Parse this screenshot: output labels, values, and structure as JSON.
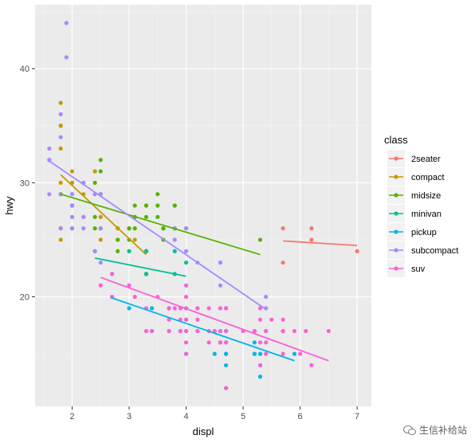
{
  "chart_data": {
    "type": "scatter",
    "xlabel": "displ",
    "ylabel": "hwy",
    "xlim": [
      1.35,
      7.25
    ],
    "ylim": [
      10.4,
      45.6
    ],
    "x_ticks": [
      2,
      3,
      4,
      5,
      6,
      7
    ],
    "y_ticks": [
      20,
      30,
      40
    ],
    "grid": true,
    "legend_title": "class",
    "legend_position": "right",
    "series": [
      {
        "name": "2seater",
        "color": "#F8766D",
        "points": [
          [
            5.7,
            26
          ],
          [
            5.7,
            23
          ],
          [
            6.2,
            26
          ],
          [
            6.2,
            25
          ],
          [
            7.0,
            24
          ]
        ],
        "fit": [
          [
            5.7,
            24.9
          ],
          [
            7.0,
            24.5
          ]
        ]
      },
      {
        "name": "compact",
        "color": "#C49A00",
        "points": [
          [
            1.8,
            29
          ],
          [
            1.8,
            29
          ],
          [
            2.0,
            31
          ],
          [
            2.0,
            30
          ],
          [
            2.8,
            26
          ],
          [
            2.8,
            26
          ],
          [
            3.1,
            27
          ],
          [
            1.8,
            26
          ],
          [
            1.8,
            25
          ],
          [
            2.0,
            28
          ],
          [
            2.0,
            27
          ],
          [
            2.8,
            25
          ],
          [
            2.8,
            25
          ],
          [
            3.1,
            25
          ],
          [
            1.8,
            30
          ],
          [
            1.8,
            33
          ],
          [
            1.8,
            35
          ],
          [
            1.8,
            37
          ],
          [
            1.8,
            35
          ],
          [
            2.2,
            27
          ],
          [
            2.2,
            29
          ],
          [
            2.4,
            31
          ],
          [
            2.4,
            31
          ],
          [
            3.0,
            26
          ],
          [
            3.3,
            24
          ],
          [
            2.5,
            26
          ],
          [
            2.5,
            25
          ],
          [
            2.5,
            29
          ],
          [
            2.5,
            27
          ],
          [
            2.8,
            25
          ]
        ],
        "fit": [
          [
            1.8,
            30.7
          ],
          [
            3.3,
            23.7
          ]
        ]
      },
      {
        "name": "midsize",
        "color": "#53B400",
        "points": [
          [
            2.4,
            27
          ],
          [
            2.4,
            30
          ],
          [
            3.1,
            26
          ],
          [
            3.5,
            29
          ],
          [
            3.6,
            26
          ],
          [
            2.5,
            32
          ],
          [
            2.5,
            31
          ],
          [
            3.0,
            26
          ],
          [
            3.3,
            28
          ],
          [
            3.8,
            26
          ],
          [
            3.8,
            28
          ],
          [
            3.8,
            26
          ],
          [
            3.3,
            28
          ],
          [
            4.0,
            26
          ],
          [
            3.5,
            27
          ],
          [
            3.5,
            28
          ],
          [
            3.0,
            26
          ],
          [
            2.4,
            26
          ],
          [
            2.4,
            29
          ],
          [
            3.3,
            27
          ],
          [
            3.8,
            28
          ],
          [
            3.8,
            26
          ],
          [
            1.8,
            29
          ],
          [
            2.0,
            28
          ],
          [
            2.0,
            26
          ],
          [
            2.8,
            25
          ],
          [
            3.1,
            28
          ],
          [
            3.1,
            27
          ],
          [
            3.6,
            26
          ],
          [
            3.6,
            25
          ],
          [
            2.8,
            24
          ],
          [
            5.3,
            25
          ],
          [
            2.0,
            28
          ],
          [
            2.5,
            29
          ],
          [
            3.0,
            25
          ]
        ],
        "fit": [
          [
            1.8,
            29.0
          ],
          [
            5.3,
            23.7
          ]
        ]
      },
      {
        "name": "minivan",
        "color": "#00C094",
        "points": [
          [
            2.4,
            24
          ],
          [
            3.0,
            24
          ],
          [
            3.3,
            22
          ],
          [
            3.3,
            22
          ],
          [
            3.3,
            24
          ],
          [
            3.3,
            24
          ],
          [
            3.3,
            24
          ],
          [
            3.3,
            22
          ],
          [
            3.8,
            22
          ],
          [
            3.8,
            24
          ],
          [
            4.0,
            23
          ]
        ],
        "fit": [
          [
            2.4,
            23.4
          ],
          [
            4.0,
            21.8
          ]
        ]
      },
      {
        "name": "pickup",
        "color": "#00B6EB",
        "points": [
          [
            2.7,
            20
          ],
          [
            2.7,
            20
          ],
          [
            2.7,
            22
          ],
          [
            3.4,
            19
          ],
          [
            3.4,
            17
          ],
          [
            3.9,
            17
          ],
          [
            4.7,
            17
          ],
          [
            4.7,
            16
          ],
          [
            4.7,
            15
          ],
          [
            5.2,
            17
          ],
          [
            5.2,
            15
          ],
          [
            5.7,
            17
          ],
          [
            5.9,
            15
          ],
          [
            4.7,
            12
          ],
          [
            5.2,
            16
          ],
          [
            5.3,
            15
          ],
          [
            5.3,
            14
          ],
          [
            5.2,
            15
          ],
          [
            4.6,
            16
          ],
          [
            4.7,
            17
          ],
          [
            4.7,
            15
          ],
          [
            5.4,
            17
          ],
          [
            4.0,
            17
          ],
          [
            4.0,
            19
          ],
          [
            3.7,
            19
          ],
          [
            4.7,
            17
          ],
          [
            5.3,
            13
          ],
          [
            4.5,
            15
          ],
          [
            4.0,
            15
          ],
          [
            4.7,
            14
          ],
          [
            3.0,
            19
          ],
          [
            4.0,
            18
          ],
          [
            4.6,
            17
          ]
        ],
        "fit": [
          [
            2.7,
            19.9
          ],
          [
            5.9,
            14.4
          ]
        ]
      },
      {
        "name": "subcompact",
        "color": "#A58AFF",
        "points": [
          [
            1.6,
            33
          ],
          [
            1.6,
            32
          ],
          [
            1.6,
            32
          ],
          [
            1.6,
            29
          ],
          [
            1.8,
            36
          ],
          [
            1.8,
            36
          ],
          [
            1.8,
            34
          ],
          [
            1.9,
            44
          ],
          [
            1.9,
            41
          ],
          [
            2.0,
            29
          ],
          [
            2.0,
            26
          ],
          [
            2.0,
            28
          ],
          [
            2.0,
            27
          ],
          [
            2.0,
            29
          ],
          [
            2.4,
            29
          ],
          [
            2.4,
            24
          ],
          [
            2.5,
            26
          ],
          [
            2.5,
            26
          ],
          [
            3.8,
            26
          ],
          [
            3.8,
            25
          ],
          [
            4.0,
            26
          ],
          [
            4.0,
            24
          ],
          [
            4.6,
            21
          ],
          [
            4.6,
            23
          ],
          [
            4.6,
            23
          ],
          [
            5.4,
            20
          ],
          [
            5.4,
            19
          ],
          [
            2.5,
            29
          ],
          [
            2.2,
            27
          ],
          [
            2.2,
            26
          ],
          [
            2.5,
            23
          ],
          [
            4.2,
            23
          ],
          [
            1.8,
            26
          ],
          [
            2.2,
            30
          ],
          [
            1.8,
            29
          ]
        ],
        "fit": [
          [
            1.6,
            31.9
          ],
          [
            5.4,
            18.9
          ]
        ]
      },
      {
        "name": "suv",
        "color": "#FB61D7",
        "points": [
          [
            3.3,
            17
          ],
          [
            3.7,
            17
          ],
          [
            3.9,
            19
          ],
          [
            4.0,
            20
          ],
          [
            4.7,
            19
          ],
          [
            4.7,
            17
          ],
          [
            4.7,
            19
          ],
          [
            5.2,
            17
          ],
          [
            5.7,
            17
          ],
          [
            5.9,
            17
          ],
          [
            4.7,
            12
          ],
          [
            5.3,
            19
          ],
          [
            5.3,
            14
          ],
          [
            5.3,
            18
          ],
          [
            5.4,
            17
          ],
          [
            5.7,
            18
          ],
          [
            6.1,
            17
          ],
          [
            6.5,
            17
          ],
          [
            4.0,
            15
          ],
          [
            4.0,
            17
          ],
          [
            4.6,
            17
          ],
          [
            5.0,
            17
          ],
          [
            4.2,
            19
          ],
          [
            4.4,
            19
          ],
          [
            5.4,
            16
          ],
          [
            6.2,
            14
          ],
          [
            3.0,
            21
          ],
          [
            4.0,
            20
          ],
          [
            4.2,
            18
          ],
          [
            5.3,
            16
          ],
          [
            5.7,
            15
          ],
          [
            3.7,
            18
          ],
          [
            4.6,
            16
          ],
          [
            2.5,
            21
          ],
          [
            2.7,
            20
          ],
          [
            3.4,
            17
          ],
          [
            4.0,
            18
          ],
          [
            4.7,
            16
          ],
          [
            5.7,
            17
          ],
          [
            6.0,
            15
          ],
          [
            3.1,
            20
          ],
          [
            3.5,
            20
          ],
          [
            4.2,
            19
          ],
          [
            4.4,
            17
          ],
          [
            5.5,
            18
          ],
          [
            2.7,
            22
          ],
          [
            3.7,
            17
          ],
          [
            3.8,
            19
          ],
          [
            4.0,
            16
          ],
          [
            4.6,
            16
          ],
          [
            5.4,
            15
          ],
          [
            3.3,
            19
          ],
          [
            4.5,
            17
          ],
          [
            4.0,
            21
          ],
          [
            4.0,
            19
          ],
          [
            3.9,
            17
          ],
          [
            3.9,
            18
          ],
          [
            4.4,
            16
          ],
          [
            4.6,
            19
          ],
          [
            3.7,
            19
          ],
          [
            4.2,
            17
          ]
        ],
        "fit": [
          [
            2.5,
            21.7
          ],
          [
            6.5,
            14.4
          ]
        ]
      }
    ]
  },
  "watermark": {
    "text": "生信补给站"
  }
}
